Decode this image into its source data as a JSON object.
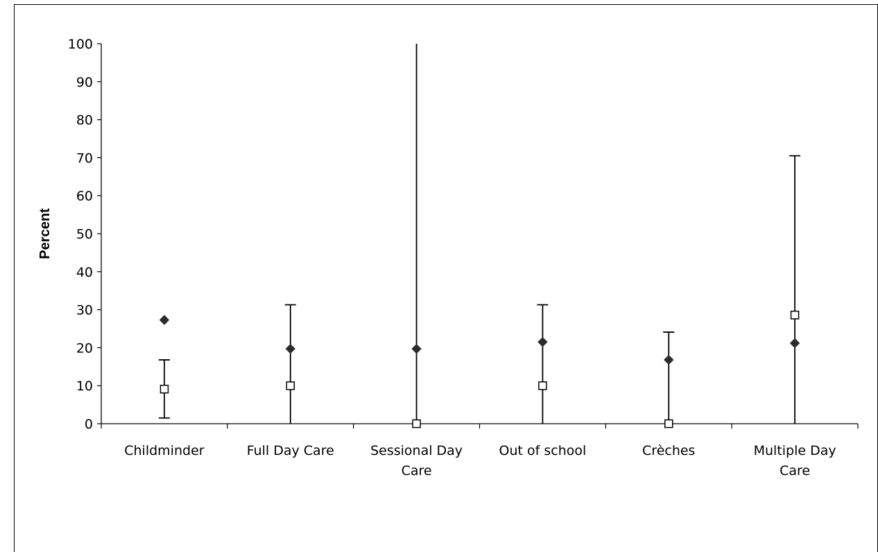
{
  "chart_data": {
    "type": "scatter",
    "ylabel": "Percent",
    "xlabel": "",
    "ylim": [
      0,
      100
    ],
    "yticks": [
      "0",
      "10",
      "20",
      "30",
      "40",
      "50",
      "60",
      "70",
      "80",
      "90",
      "100"
    ],
    "categories": [
      [
        "Childminder"
      ],
      [
        "Full Day Care"
      ],
      [
        "Sessional Day",
        "Care"
      ],
      [
        "Out of school"
      ],
      [
        "Crèches"
      ],
      [
        "Multiple Day",
        "Care"
      ]
    ],
    "series": [
      {
        "marker": "filled-diamond",
        "values": [
          27.3,
          19.7,
          19.7,
          21.5,
          16.8,
          21.2
        ]
      },
      {
        "marker": "open-square",
        "values": [
          9.1,
          10.0,
          0,
          10.0,
          0,
          28.6
        ]
      }
    ],
    "error_bars": [
      {
        "low": 1.5,
        "high": 16.8
      },
      {
        "low": 0,
        "high": 31.3
      },
      {
        "low": 0,
        "high": 100
      },
      {
        "low": 0,
        "high": 31.3
      },
      {
        "low": 0,
        "high": 24.1
      },
      {
        "low": 0,
        "high": 70.5
      }
    ],
    "colors": {
      "line": "#000000",
      "diamond": "#2b2b2b",
      "square_fill": "#ffffff"
    }
  }
}
